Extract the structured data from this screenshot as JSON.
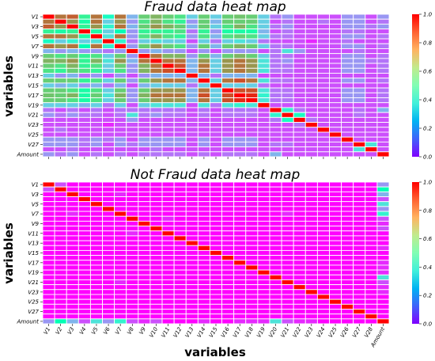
{
  "chart_data": [
    {
      "type": "heatmap",
      "title": "Fraud data heat map",
      "xlabel": "",
      "ylabel": "variables",
      "variables": [
        "V1",
        "V2",
        "V3",
        "V4",
        "V5",
        "V6",
        "V7",
        "V8",
        "V9",
        "V10",
        "V11",
        "V12",
        "V13",
        "V14",
        "V15",
        "V16",
        "V17",
        "V18",
        "V19",
        "V20",
        "V21",
        "V22",
        "V23",
        "V24",
        "V25",
        "V26",
        "V27",
        "V28",
        "Amount"
      ],
      "ytick_labels": [
        "V1",
        "V3",
        "V5",
        "V7",
        "V9",
        "V11",
        "V13",
        "V15",
        "V17",
        "V19",
        "V21",
        "V23",
        "V25",
        "V27",
        "Amount"
      ],
      "xtick_labels_visible": false,
      "colorbar": {
        "min": 0.0,
        "max": 1.0,
        "ticks": [
          "0.0",
          "0.2",
          "0.4",
          "0.6",
          "0.8",
          "1.0"
        ],
        "colormap": "rainbow"
      },
      "values_approx": [
        [
          1.0,
          0.85,
          0.88,
          0.6,
          0.85,
          0.45,
          0.85,
          0.25,
          0.7,
          0.75,
          0.7,
          0.65,
          0.3,
          0.7,
          0.3,
          0.7,
          0.72,
          0.7,
          0.3,
          0.15,
          0.2,
          0.1,
          0.1,
          0.1,
          0.1,
          0.2,
          0.2,
          0.1,
          0.2
        ],
        [
          0.85,
          1.0,
          0.8,
          0.55,
          0.85,
          0.3,
          0.8,
          0.2,
          0.65,
          0.75,
          0.65,
          0.6,
          0.2,
          0.7,
          0.25,
          0.7,
          0.7,
          0.7,
          0.3,
          0.1,
          0.15,
          0.1,
          0.1,
          0.15,
          0.1,
          0.2,
          0.2,
          0.1,
          0.15
        ],
        [
          0.88,
          0.8,
          1.0,
          0.6,
          0.8,
          0.4,
          0.85,
          0.25,
          0.7,
          0.8,
          0.75,
          0.7,
          0.25,
          0.7,
          0.3,
          0.65,
          0.75,
          0.65,
          0.3,
          0.15,
          0.2,
          0.1,
          0.1,
          0.1,
          0.1,
          0.2,
          0.2,
          0.15,
          0.2
        ],
        [
          0.6,
          0.55,
          0.6,
          1.0,
          0.55,
          0.3,
          0.5,
          0.2,
          0.6,
          0.6,
          0.6,
          0.65,
          0.15,
          0.6,
          0.2,
          0.55,
          0.55,
          0.55,
          0.25,
          0.1,
          0.15,
          0.1,
          0.1,
          0.1,
          0.1,
          0.15,
          0.15,
          0.1,
          0.1
        ],
        [
          0.85,
          0.85,
          0.8,
          0.55,
          1.0,
          0.35,
          0.85,
          0.2,
          0.65,
          0.75,
          0.65,
          0.6,
          0.2,
          0.65,
          0.25,
          0.65,
          0.7,
          0.65,
          0.3,
          0.15,
          0.15,
          0.1,
          0.1,
          0.1,
          0.1,
          0.2,
          0.2,
          0.1,
          0.15
        ],
        [
          0.45,
          0.3,
          0.4,
          0.3,
          0.35,
          1.0,
          0.4,
          0.15,
          0.3,
          0.35,
          0.3,
          0.3,
          0.1,
          0.3,
          0.15,
          0.3,
          0.35,
          0.3,
          0.15,
          0.1,
          0.1,
          0.1,
          0.05,
          0.1,
          0.1,
          0.15,
          0.1,
          0.1,
          0.1
        ],
        [
          0.85,
          0.8,
          0.85,
          0.5,
          0.85,
          0.4,
          1.0,
          0.2,
          0.7,
          0.8,
          0.7,
          0.65,
          0.2,
          0.7,
          0.25,
          0.7,
          0.75,
          0.7,
          0.3,
          0.15,
          0.15,
          0.1,
          0.1,
          0.1,
          0.1,
          0.2,
          0.2,
          0.1,
          0.15
        ],
        [
          0.25,
          0.2,
          0.25,
          0.2,
          0.2,
          0.15,
          0.2,
          1.0,
          0.2,
          0.25,
          0.2,
          0.2,
          0.1,
          0.2,
          0.1,
          0.2,
          0.2,
          0.2,
          0.1,
          0.15,
          0.35,
          0.2,
          0.1,
          0.1,
          0.1,
          0.1,
          0.15,
          0.1,
          0.1
        ],
        [
          0.7,
          0.65,
          0.7,
          0.6,
          0.65,
          0.3,
          0.7,
          0.2,
          1.0,
          0.85,
          0.75,
          0.75,
          0.2,
          0.7,
          0.25,
          0.7,
          0.75,
          0.7,
          0.3,
          0.15,
          0.15,
          0.1,
          0.1,
          0.1,
          0.1,
          0.2,
          0.2,
          0.1,
          0.15
        ],
        [
          0.75,
          0.75,
          0.8,
          0.6,
          0.75,
          0.35,
          0.8,
          0.25,
          0.85,
          1.0,
          0.85,
          0.85,
          0.25,
          0.8,
          0.3,
          0.8,
          0.85,
          0.8,
          0.35,
          0.15,
          0.2,
          0.1,
          0.1,
          0.1,
          0.1,
          0.2,
          0.2,
          0.15,
          0.15
        ],
        [
          0.7,
          0.65,
          0.75,
          0.6,
          0.65,
          0.3,
          0.7,
          0.2,
          0.75,
          0.85,
          1.0,
          0.9,
          0.25,
          0.85,
          0.3,
          0.8,
          0.85,
          0.8,
          0.35,
          0.15,
          0.15,
          0.1,
          0.1,
          0.1,
          0.1,
          0.2,
          0.2,
          0.1,
          0.15
        ],
        [
          0.65,
          0.6,
          0.7,
          0.65,
          0.6,
          0.3,
          0.65,
          0.2,
          0.75,
          0.85,
          0.9,
          1.0,
          0.25,
          0.85,
          0.3,
          0.8,
          0.85,
          0.8,
          0.35,
          0.15,
          0.15,
          0.1,
          0.1,
          0.1,
          0.1,
          0.2,
          0.2,
          0.1,
          0.15
        ],
        [
          0.3,
          0.2,
          0.25,
          0.15,
          0.2,
          0.1,
          0.2,
          0.1,
          0.2,
          0.25,
          0.25,
          0.25,
          1.0,
          0.25,
          0.15,
          0.25,
          0.25,
          0.25,
          0.1,
          0.1,
          0.1,
          0.1,
          0.1,
          0.1,
          0.1,
          0.1,
          0.1,
          0.1,
          0.1
        ],
        [
          0.7,
          0.7,
          0.7,
          0.6,
          0.65,
          0.3,
          0.7,
          0.2,
          0.7,
          0.8,
          0.85,
          0.85,
          0.25,
          1.0,
          0.3,
          0.85,
          0.9,
          0.85,
          0.35,
          0.15,
          0.15,
          0.1,
          0.1,
          0.1,
          0.1,
          0.2,
          0.2,
          0.1,
          0.15
        ],
        [
          0.3,
          0.25,
          0.3,
          0.2,
          0.25,
          0.15,
          0.25,
          0.1,
          0.25,
          0.3,
          0.3,
          0.3,
          0.15,
          0.3,
          1.0,
          0.3,
          0.3,
          0.3,
          0.15,
          0.1,
          0.1,
          0.1,
          0.1,
          0.1,
          0.1,
          0.1,
          0.1,
          0.1,
          0.1
        ],
        [
          0.7,
          0.7,
          0.65,
          0.55,
          0.65,
          0.3,
          0.7,
          0.2,
          0.7,
          0.8,
          0.8,
          0.8,
          0.25,
          0.85,
          0.3,
          1.0,
          0.9,
          0.9,
          0.35,
          0.15,
          0.15,
          0.1,
          0.1,
          0.1,
          0.1,
          0.2,
          0.2,
          0.1,
          0.15
        ],
        [
          0.72,
          0.7,
          0.75,
          0.55,
          0.7,
          0.35,
          0.75,
          0.2,
          0.75,
          0.85,
          0.85,
          0.85,
          0.25,
          0.9,
          0.3,
          0.9,
          1.0,
          0.95,
          0.4,
          0.15,
          0.15,
          0.1,
          0.1,
          0.1,
          0.1,
          0.2,
          0.2,
          0.1,
          0.15
        ],
        [
          0.7,
          0.7,
          0.65,
          0.55,
          0.65,
          0.3,
          0.7,
          0.2,
          0.7,
          0.8,
          0.8,
          0.8,
          0.25,
          0.85,
          0.3,
          0.9,
          0.95,
          1.0,
          0.35,
          0.15,
          0.15,
          0.1,
          0.1,
          0.1,
          0.1,
          0.2,
          0.2,
          0.1,
          0.15
        ],
        [
          0.3,
          0.3,
          0.3,
          0.25,
          0.3,
          0.15,
          0.3,
          0.1,
          0.3,
          0.35,
          0.35,
          0.35,
          0.1,
          0.35,
          0.15,
          0.35,
          0.4,
          0.35,
          1.0,
          0.1,
          0.1,
          0.1,
          0.1,
          0.1,
          0.1,
          0.1,
          0.1,
          0.1,
          0.1
        ],
        [
          0.15,
          0.1,
          0.15,
          0.1,
          0.15,
          0.1,
          0.15,
          0.15,
          0.15,
          0.15,
          0.15,
          0.15,
          0.1,
          0.15,
          0.1,
          0.15,
          0.15,
          0.15,
          0.1,
          1.0,
          0.4,
          0.15,
          0.1,
          0.1,
          0.1,
          0.1,
          0.15,
          0.1,
          0.25
        ],
        [
          0.2,
          0.15,
          0.2,
          0.15,
          0.15,
          0.1,
          0.15,
          0.35,
          0.15,
          0.2,
          0.15,
          0.15,
          0.1,
          0.15,
          0.1,
          0.15,
          0.15,
          0.15,
          0.1,
          0.4,
          1.0,
          0.45,
          0.1,
          0.1,
          0.1,
          0.1,
          0.15,
          0.1,
          0.1
        ],
        [
          0.1,
          0.1,
          0.1,
          0.1,
          0.1,
          0.1,
          0.1,
          0.2,
          0.1,
          0.1,
          0.1,
          0.1,
          0.1,
          0.1,
          0.1,
          0.1,
          0.1,
          0.1,
          0.1,
          0.15,
          0.45,
          1.0,
          0.15,
          0.1,
          0.1,
          0.1,
          0.1,
          0.1,
          0.1
        ],
        [
          0.1,
          0.1,
          0.1,
          0.1,
          0.1,
          0.05,
          0.1,
          0.1,
          0.1,
          0.1,
          0.1,
          0.1,
          0.1,
          0.1,
          0.1,
          0.1,
          0.1,
          0.1,
          0.1,
          0.1,
          0.1,
          0.15,
          1.0,
          0.1,
          0.1,
          0.1,
          0.1,
          0.1,
          0.1
        ],
        [
          0.1,
          0.15,
          0.1,
          0.1,
          0.1,
          0.1,
          0.1,
          0.1,
          0.1,
          0.1,
          0.1,
          0.1,
          0.1,
          0.1,
          0.1,
          0.1,
          0.1,
          0.1,
          0.1,
          0.1,
          0.1,
          0.1,
          0.1,
          1.0,
          0.1,
          0.1,
          0.1,
          0.1,
          0.1
        ],
        [
          0.1,
          0.1,
          0.1,
          0.1,
          0.1,
          0.1,
          0.1,
          0.1,
          0.1,
          0.1,
          0.1,
          0.1,
          0.1,
          0.1,
          0.1,
          0.1,
          0.1,
          0.1,
          0.1,
          0.1,
          0.1,
          0.1,
          0.1,
          0.1,
          1.0,
          0.1,
          0.1,
          0.1,
          0.1
        ],
        [
          0.2,
          0.2,
          0.2,
          0.15,
          0.2,
          0.15,
          0.2,
          0.1,
          0.2,
          0.2,
          0.2,
          0.2,
          0.1,
          0.2,
          0.1,
          0.2,
          0.2,
          0.2,
          0.1,
          0.1,
          0.1,
          0.1,
          0.1,
          0.1,
          0.1,
          1.0,
          0.1,
          0.1,
          0.1
        ],
        [
          0.2,
          0.2,
          0.2,
          0.15,
          0.2,
          0.1,
          0.2,
          0.15,
          0.2,
          0.2,
          0.2,
          0.2,
          0.1,
          0.2,
          0.1,
          0.2,
          0.2,
          0.2,
          0.1,
          0.15,
          0.15,
          0.1,
          0.1,
          0.1,
          0.1,
          0.1,
          1.0,
          0.35,
          0.1
        ],
        [
          0.1,
          0.1,
          0.15,
          0.1,
          0.1,
          0.1,
          0.1,
          0.1,
          0.1,
          0.15,
          0.1,
          0.1,
          0.1,
          0.1,
          0.1,
          0.1,
          0.1,
          0.1,
          0.1,
          0.1,
          0.1,
          0.1,
          0.1,
          0.1,
          0.1,
          0.1,
          0.35,
          1.0,
          0.1
        ],
        [
          0.2,
          0.15,
          0.2,
          0.1,
          0.15,
          0.1,
          0.15,
          0.1,
          0.15,
          0.15,
          0.15,
          0.15,
          0.1,
          0.15,
          0.1,
          0.15,
          0.15,
          0.15,
          0.1,
          0.25,
          0.1,
          0.1,
          0.1,
          0.1,
          0.1,
          0.1,
          0.1,
          0.1,
          1.0
        ]
      ]
    },
    {
      "type": "heatmap",
      "title": "Not Fraud data heat map",
      "xlabel": "variables",
      "ylabel": "variables",
      "variables": [
        "V1",
        "V2",
        "V3",
        "V4",
        "V5",
        "V6",
        "V7",
        "V8",
        "V9",
        "V10",
        "V11",
        "V12",
        "V13",
        "V14",
        "V15",
        "V16",
        "V17",
        "V18",
        "V19",
        "V20",
        "V21",
        "V22",
        "V23",
        "V24",
        "V25",
        "V26",
        "V27",
        "V28",
        "Amount"
      ],
      "ytick_labels": [
        "V1",
        "V3",
        "V5",
        "V7",
        "V9",
        "V11",
        "V13",
        "V15",
        "V17",
        "V19",
        "V21",
        "V23",
        "V25",
        "V27",
        "Amount"
      ],
      "xtick_labels": [
        "V1",
        "V2",
        "V3",
        "V4",
        "V5",
        "V6",
        "V7",
        "V8",
        "V9",
        "V10",
        "V11",
        "V12",
        "V13",
        "V14",
        "V15",
        "V16",
        "V17",
        "V18",
        "V19",
        "V20",
        "V21",
        "V22",
        "V23",
        "V24",
        "V25",
        "V26",
        "V27",
        "V28",
        "Amount"
      ],
      "colorbar": {
        "min": 0.0,
        "max": 1.0,
        "ticks": [
          "0.0",
          "0.2",
          "0.4",
          "0.6",
          "0.8",
          "1.0"
        ],
        "colormap": "rainbow"
      },
      "diagonal": 1.0,
      "off_diagonal_typical": 0.0,
      "amount_correlations_approx": [
        0.2,
        0.5,
        0.25,
        0.1,
        0.35,
        0.2,
        0.4,
        0.1,
        0.05,
        0.1,
        0.0,
        0.0,
        0.0,
        0.05,
        0.0,
        0.0,
        0.05,
        0.05,
        0.05,
        0.35,
        0.1,
        0.05,
        0.05,
        0.0,
        0.0,
        0.0,
        0.0,
        0.0,
        1.0
      ],
      "notable_off_diagonal": [
        {
          "row": "V2",
          "col": "V1",
          "value": 0.1
        },
        {
          "row": "V7",
          "col": "V3",
          "value": 0.05
        },
        {
          "row": "V11",
          "col": "V8",
          "value": 0.05
        },
        {
          "row": "V21",
          "col": "V7",
          "value": 0.05
        }
      ]
    }
  ]
}
